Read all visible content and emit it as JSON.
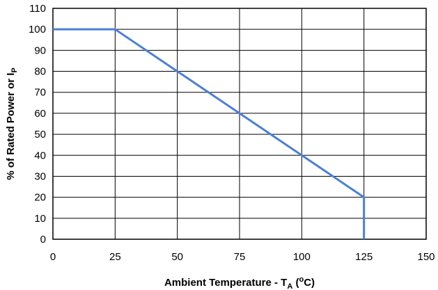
{
  "chart_data": {
    "type": "line",
    "xlabel": {
      "prefix": "Ambient Temperature - T",
      "subscript": "A",
      "suffix_open": " (",
      "superscript": "o",
      "suffix_close": "C)"
    },
    "ylabel": "% of Rated Power or I",
    "ylabel_subscript": "P",
    "xlim": [
      0,
      150
    ],
    "ylim": [
      0,
      110
    ],
    "xticks": [
      0,
      25,
      50,
      75,
      100,
      125,
      150
    ],
    "yticks": [
      0,
      10,
      20,
      30,
      40,
      50,
      60,
      70,
      80,
      90,
      100,
      110
    ],
    "grid": true,
    "series": [
      {
        "color": "#4a7fd6",
        "points": [
          [
            0,
            100
          ],
          [
            25,
            100
          ],
          [
            125,
            20
          ],
          [
            125,
            0
          ]
        ]
      }
    ]
  }
}
